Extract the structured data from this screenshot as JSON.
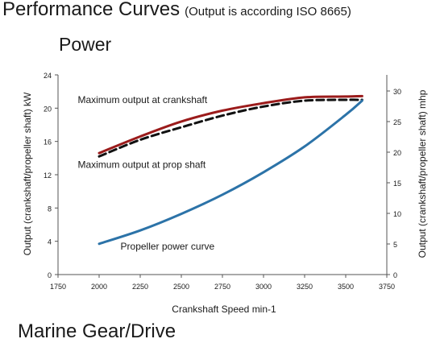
{
  "header": {
    "title": "Performance Curves",
    "subtitle": "(Output is according ISO 8665)"
  },
  "section": {
    "title": "Power"
  },
  "next_section": {
    "title": "Marine Gear/Drive"
  },
  "chart_data": {
    "type": "line",
    "title": "Power",
    "xlabel": "Crankshaft Speed min-1",
    "ylabel_left": "Output (crankshaft/propeller shaft) kW",
    "ylabel_right": "Output (crankshaft/propeller shaft) mhp",
    "xlim": [
      1750,
      3750
    ],
    "ylim_left": [
      0,
      24
    ],
    "ylim_right": [
      0,
      32.63
    ],
    "x_ticks": [
      1750,
      2000,
      2250,
      2500,
      2750,
      3000,
      3250,
      3500,
      3750
    ],
    "y_ticks_left": [
      0,
      4,
      8,
      12,
      16,
      20,
      24
    ],
    "y_ticks_right": [
      0,
      5,
      10,
      15,
      20,
      25,
      30
    ],
    "grid": false,
    "colors": {
      "crankshaft": "#9b1b1b",
      "propshaft": "#111111",
      "propeller": "#2c73a8",
      "axis": "#555555"
    },
    "series": [
      {
        "name": "Maximum output at crankshaft",
        "style": "solid",
        "x": [
          2000,
          2250,
          2500,
          2750,
          3000,
          3250,
          3500,
          3600
        ],
        "y": [
          14.6,
          16.6,
          18.4,
          19.7,
          20.6,
          21.3,
          21.4,
          21.45
        ]
      },
      {
        "name": "Maximum output at prop shaft",
        "style": "dashed",
        "x": [
          2000,
          2250,
          2500,
          2750,
          3000,
          3250,
          3500,
          3600
        ],
        "y": [
          14.2,
          16.2,
          17.7,
          19.1,
          20.2,
          20.9,
          21.0,
          21.0
        ]
      },
      {
        "name": "Propeller power curve",
        "style": "solid",
        "x": [
          2000,
          2250,
          2500,
          2750,
          3000,
          3250,
          3500,
          3600
        ],
        "y": [
          3.7,
          5.3,
          7.3,
          9.6,
          12.3,
          15.4,
          19.2,
          20.9
        ]
      }
    ],
    "annotations": [
      {
        "text": "Maximum output at crankshaft",
        "x": 1870,
        "y": 20.6
      },
      {
        "text": "Maximum output at prop shaft",
        "x": 1870,
        "y": 12.8
      },
      {
        "text": "Propeller power curve",
        "x": 2130,
        "y": 3.0
      }
    ]
  }
}
